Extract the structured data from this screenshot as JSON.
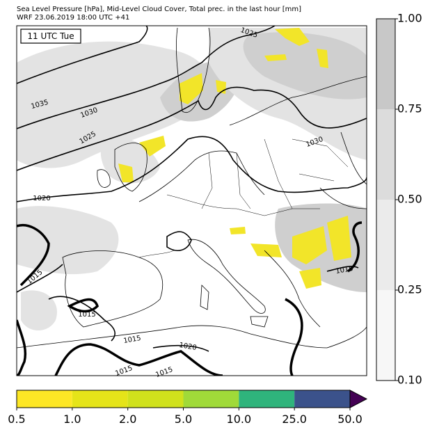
{
  "header": {
    "title": "Sea Level Pressure [hPa], Mid-Level Cloud Cover, Total prec. in the last hour [mm]",
    "subtitle": "WRF 23.06.2019 18:00 UTC +41"
  },
  "map": {
    "time_label": "11 UTC Tue",
    "isobar_labels": [
      "1025",
      "1035",
      "1030",
      "1025",
      "1030",
      "1020",
      "1015",
      "1015",
      "1015",
      "1015",
      "1020",
      "1015",
      "1015"
    ]
  },
  "cloud_colorbar": {
    "ticks": [
      {
        "value": 0.1,
        "label": "0.10"
      },
      {
        "value": 0.25,
        "label": "0.25"
      },
      {
        "value": 0.5,
        "label": "0.50"
      },
      {
        "value": 0.75,
        "label": "0.75"
      },
      {
        "value": 1,
        "label": "1.00"
      }
    ],
    "colors": [
      "#f7f7f7",
      "#ebebeb",
      "#dcdcdc",
      "#c8c8c8"
    ]
  },
  "precip_colorbar": {
    "ticks": [
      0.5,
      {
        "value": 1,
        "label": "1.0"
      },
      {
        "value": 2,
        "label": "2.0"
      },
      {
        "value": 5,
        "label": "5.0"
      },
      {
        "value": 10,
        "label": "10.0"
      },
      {
        "value": 25,
        "label": "25.0"
      },
      {
        "value": 50,
        "label": "50.0"
      }
    ],
    "colors": [
      "#fde725",
      "#e5e419",
      "#d0e11c",
      "#a0da39",
      "#2fb47c",
      "#3b528b"
    ],
    "extend_color": "#440154"
  }
}
